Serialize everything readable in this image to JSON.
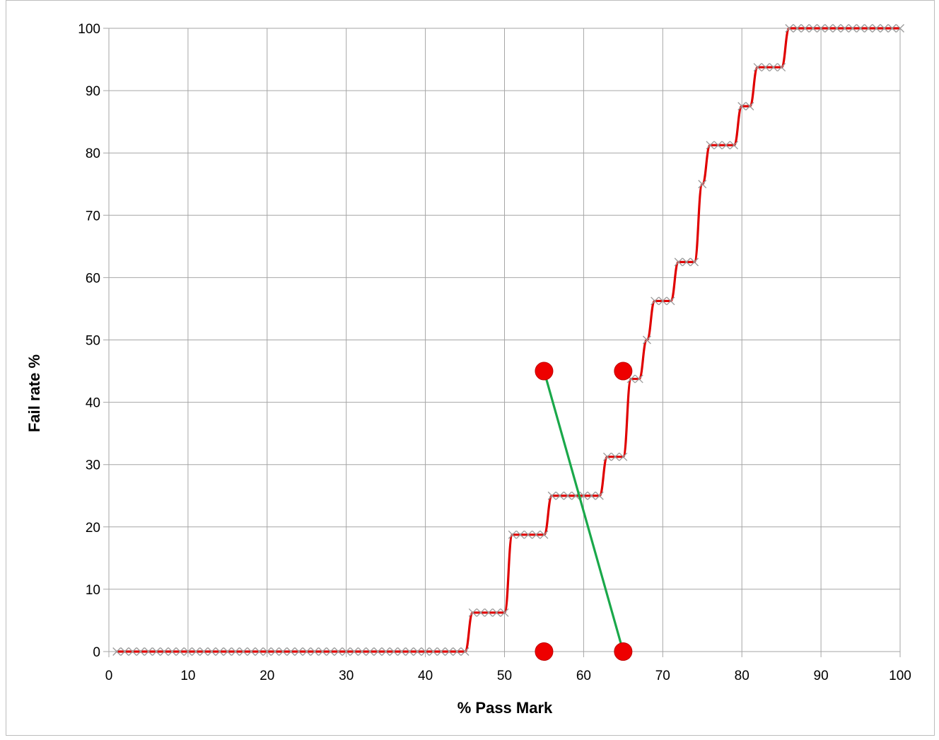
{
  "chart_data": {
    "type": "line",
    "title": "",
    "xlabel": "% Pass Mark",
    "ylabel": "Fail rate %",
    "xlim": [
      0,
      100
    ],
    "ylim": [
      0,
      100
    ],
    "xticks": [
      0,
      10,
      20,
      30,
      40,
      50,
      60,
      70,
      80,
      90,
      100
    ],
    "yticks": [
      0,
      10,
      20,
      30,
      40,
      50,
      60,
      70,
      80,
      90,
      100
    ],
    "grid": true,
    "legend": "none",
    "colors": {
      "curve": "#e00000",
      "markers": "#999999",
      "dots": "#ee0000",
      "connector": "#1aa84a",
      "grid": "#a6a6a6"
    },
    "series": [
      {
        "type": "line-with-x-markers",
        "x": [
          1,
          2,
          3,
          4,
          5,
          6,
          7,
          8,
          9,
          10,
          11,
          12,
          13,
          14,
          15,
          16,
          17,
          18,
          19,
          20,
          21,
          22,
          23,
          24,
          25,
          26,
          27,
          28,
          29,
          30,
          31,
          32,
          33,
          34,
          35,
          36,
          37,
          38,
          39,
          40,
          41,
          42,
          43,
          44,
          45,
          46,
          47,
          48,
          49,
          50,
          51,
          52,
          53,
          54,
          55,
          56,
          57,
          58,
          59,
          60,
          61,
          62,
          63,
          64,
          65,
          66,
          67,
          68,
          69,
          70,
          71,
          72,
          73,
          74,
          75,
          76,
          77,
          78,
          79,
          80,
          81,
          82,
          83,
          84,
          85,
          86,
          87,
          88,
          89,
          90,
          91,
          92,
          93,
          94,
          95,
          96,
          97,
          98,
          99,
          100
        ],
        "values": [
          0,
          0,
          0,
          0,
          0,
          0,
          0,
          0,
          0,
          0,
          0,
          0,
          0,
          0,
          0,
          0,
          0,
          0,
          0,
          0,
          0,
          0,
          0,
          0,
          0,
          0,
          0,
          0,
          0,
          0,
          0,
          0,
          0,
          0,
          0,
          0,
          0,
          0,
          0,
          0,
          0,
          0,
          0,
          0,
          0,
          6.25,
          6.25,
          6.25,
          6.25,
          6.25,
          18.75,
          18.75,
          18.75,
          18.75,
          18.75,
          25,
          25,
          25,
          25,
          25,
          25,
          25,
          31.25,
          31.25,
          31.25,
          43.75,
          43.75,
          50,
          56.25,
          56.25,
          56.25,
          62.5,
          62.5,
          62.5,
          75,
          81.25,
          81.25,
          81.25,
          81.25,
          87.5,
          87.5,
          93.75,
          93.75,
          93.75,
          93.75,
          100,
          100,
          100,
          100,
          100,
          100,
          100,
          100,
          100,
          100,
          100,
          100,
          100,
          100,
          100
        ]
      },
      {
        "type": "segment",
        "points": [
          {
            "x": 55,
            "y": 45
          },
          {
            "x": 65,
            "y": 0
          }
        ]
      },
      {
        "type": "dots",
        "points": [
          {
            "x": 55,
            "y": 45
          },
          {
            "x": 65,
            "y": 45
          },
          {
            "x": 55,
            "y": 0
          },
          {
            "x": 65,
            "y": 0
          }
        ]
      }
    ]
  }
}
